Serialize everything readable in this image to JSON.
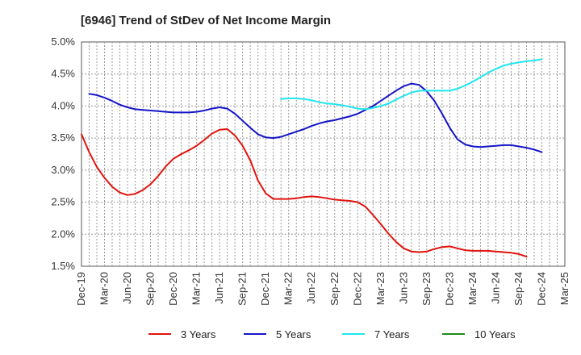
{
  "chart_data": {
    "type": "line",
    "title": "[6946]  Trend of StDev of Net Income Margin",
    "xlabel": "",
    "ylabel": "",
    "x_ticks": [
      "Dec-19",
      "Mar-20",
      "Jun-20",
      "Sep-20",
      "Dec-20",
      "Mar-21",
      "Jun-21",
      "Sep-21",
      "Dec-21",
      "Mar-22",
      "Jun-22",
      "Sep-22",
      "Dec-22",
      "Mar-23",
      "Jun-23",
      "Sep-23",
      "Dec-23",
      "Mar-24",
      "Jun-24",
      "Sep-24",
      "Dec-24",
      "Mar-25"
    ],
    "y_ticks": [
      "1.5%",
      "2.0%",
      "2.5%",
      "3.0%",
      "3.5%",
      "4.0%",
      "4.5%",
      "5.0%"
    ],
    "ylim": [
      1.5,
      5.0
    ],
    "grid": true,
    "legend_position": "bottom",
    "series": [
      {
        "name": "3 Years",
        "color": "#e0140f",
        "points": [
          [
            "Dec-19",
            3.56
          ],
          [
            "Jan-20",
            3.28
          ],
          [
            "Feb-20",
            3.05
          ],
          [
            "Mar-20",
            2.88
          ],
          [
            "Apr-20",
            2.74
          ],
          [
            "May-20",
            2.65
          ],
          [
            "Jun-20",
            2.61
          ],
          [
            "Jul-20",
            2.63
          ],
          [
            "Aug-20",
            2.69
          ],
          [
            "Sep-20",
            2.78
          ],
          [
            "Oct-20",
            2.91
          ],
          [
            "Nov-20",
            3.06
          ],
          [
            "Dec-20",
            3.18
          ],
          [
            "Jan-21",
            3.25
          ],
          [
            "Feb-21",
            3.31
          ],
          [
            "Mar-21",
            3.38
          ],
          [
            "Apr-21",
            3.47
          ],
          [
            "May-21",
            3.57
          ],
          [
            "Jun-21",
            3.63
          ],
          [
            "Jul-21",
            3.64
          ],
          [
            "Aug-21",
            3.54
          ],
          [
            "Sep-21",
            3.38
          ],
          [
            "Oct-21",
            3.15
          ],
          [
            "Nov-21",
            2.84
          ],
          [
            "Dec-21",
            2.64
          ],
          [
            "Jan-22",
            2.55
          ],
          [
            "Feb-22",
            2.55
          ],
          [
            "Mar-22",
            2.55
          ],
          [
            "Apr-22",
            2.56
          ],
          [
            "May-22",
            2.58
          ],
          [
            "Jun-22",
            2.59
          ],
          [
            "Jul-22",
            2.58
          ],
          [
            "Aug-22",
            2.56
          ],
          [
            "Sep-22",
            2.54
          ],
          [
            "Oct-22",
            2.53
          ],
          [
            "Nov-22",
            2.52
          ],
          [
            "Dec-22",
            2.5
          ],
          [
            "Jan-23",
            2.43
          ],
          [
            "Feb-23",
            2.3
          ],
          [
            "Mar-23",
            2.16
          ],
          [
            "Apr-23",
            2.01
          ],
          [
            "May-23",
            1.88
          ],
          [
            "Jun-23",
            1.78
          ],
          [
            "Jul-23",
            1.73
          ],
          [
            "Aug-23",
            1.72
          ],
          [
            "Sep-23",
            1.73
          ],
          [
            "Oct-23",
            1.77
          ],
          [
            "Nov-23",
            1.8
          ],
          [
            "Dec-23",
            1.81
          ],
          [
            "Jan-24",
            1.78
          ],
          [
            "Feb-24",
            1.75
          ],
          [
            "Mar-24",
            1.74
          ],
          [
            "Apr-24",
            1.74
          ],
          [
            "May-24",
            1.74
          ],
          [
            "Jun-24",
            1.73
          ],
          [
            "Jul-24",
            1.72
          ],
          [
            "Aug-24",
            1.71
          ],
          [
            "Sep-24",
            1.69
          ],
          [
            "Oct-24",
            1.65
          ]
        ]
      },
      {
        "name": "5 Years",
        "color": "#1414c8",
        "points": [
          [
            "Jan-20",
            4.19
          ],
          [
            "Feb-20",
            4.17
          ],
          [
            "Mar-20",
            4.13
          ],
          [
            "Apr-20",
            4.08
          ],
          [
            "May-20",
            4.02
          ],
          [
            "Jun-20",
            3.98
          ],
          [
            "Jul-20",
            3.95
          ],
          [
            "Aug-20",
            3.94
          ],
          [
            "Sep-20",
            3.93
          ],
          [
            "Oct-20",
            3.92
          ],
          [
            "Nov-20",
            3.91
          ],
          [
            "Dec-20",
            3.9
          ],
          [
            "Jan-21",
            3.9
          ],
          [
            "Feb-21",
            3.9
          ],
          [
            "Mar-21",
            3.91
          ],
          [
            "Apr-21",
            3.93
          ],
          [
            "May-21",
            3.96
          ],
          [
            "Jun-21",
            3.98
          ],
          [
            "Jul-21",
            3.96
          ],
          [
            "Aug-21",
            3.88
          ],
          [
            "Sep-21",
            3.77
          ],
          [
            "Oct-21",
            3.66
          ],
          [
            "Nov-21",
            3.56
          ],
          [
            "Dec-21",
            3.51
          ],
          [
            "Jan-22",
            3.5
          ],
          [
            "Feb-22",
            3.52
          ],
          [
            "Mar-22",
            3.56
          ],
          [
            "Apr-22",
            3.6
          ],
          [
            "May-22",
            3.64
          ],
          [
            "Jun-22",
            3.69
          ],
          [
            "Jul-22",
            3.73
          ],
          [
            "Aug-22",
            3.76
          ],
          [
            "Sep-22",
            3.78
          ],
          [
            "Oct-22",
            3.81
          ],
          [
            "Nov-22",
            3.84
          ],
          [
            "Dec-22",
            3.88
          ],
          [
            "Jan-23",
            3.94
          ],
          [
            "Feb-23",
            4.0
          ],
          [
            "Mar-23",
            4.08
          ],
          [
            "Apr-23",
            4.16
          ],
          [
            "May-23",
            4.24
          ],
          [
            "Jun-23",
            4.31
          ],
          [
            "Jul-23",
            4.35
          ],
          [
            "Aug-23",
            4.33
          ],
          [
            "Sep-23",
            4.23
          ],
          [
            "Oct-23",
            4.08
          ],
          [
            "Nov-23",
            3.88
          ],
          [
            "Dec-23",
            3.66
          ],
          [
            "Jan-24",
            3.48
          ],
          [
            "Feb-24",
            3.4
          ],
          [
            "Mar-24",
            3.37
          ],
          [
            "Apr-24",
            3.36
          ],
          [
            "May-24",
            3.37
          ],
          [
            "Jun-24",
            3.38
          ],
          [
            "Jul-24",
            3.39
          ],
          [
            "Aug-24",
            3.39
          ],
          [
            "Sep-24",
            3.37
          ],
          [
            "Oct-24",
            3.35
          ],
          [
            "Nov-24",
            3.32
          ],
          [
            "Dec-24",
            3.28
          ]
        ]
      },
      {
        "name": "7 Years",
        "color": "#1ee6f0",
        "points": [
          [
            "Feb-22",
            4.11
          ],
          [
            "Mar-22",
            4.12
          ],
          [
            "Apr-22",
            4.12
          ],
          [
            "May-22",
            4.11
          ],
          [
            "Jun-22",
            4.09
          ],
          [
            "Jul-22",
            4.06
          ],
          [
            "Aug-22",
            4.04
          ],
          [
            "Sep-22",
            4.03
          ],
          [
            "Oct-22",
            4.01
          ],
          [
            "Nov-22",
            3.99
          ],
          [
            "Dec-22",
            3.96
          ],
          [
            "Jan-23",
            3.95
          ],
          [
            "Feb-23",
            3.97
          ],
          [
            "Mar-23",
            4.0
          ],
          [
            "Apr-23",
            4.04
          ],
          [
            "May-23",
            4.1
          ],
          [
            "Jun-23",
            4.16
          ],
          [
            "Jul-23",
            4.21
          ],
          [
            "Aug-23",
            4.24
          ],
          [
            "Sep-23",
            4.24
          ],
          [
            "Oct-23",
            4.24
          ],
          [
            "Nov-23",
            4.24
          ],
          [
            "Dec-23",
            4.24
          ],
          [
            "Jan-24",
            4.27
          ],
          [
            "Feb-24",
            4.32
          ],
          [
            "Mar-24",
            4.38
          ],
          [
            "Apr-24",
            4.45
          ],
          [
            "May-24",
            4.52
          ],
          [
            "Jun-24",
            4.58
          ],
          [
            "Jul-24",
            4.63
          ],
          [
            "Aug-24",
            4.66
          ],
          [
            "Sep-24",
            4.68
          ],
          [
            "Oct-24",
            4.7
          ],
          [
            "Nov-24",
            4.71
          ],
          [
            "Dec-24",
            4.73
          ]
        ]
      },
      {
        "name": "10 Years",
        "color": "#1a8c1a",
        "points": []
      }
    ]
  }
}
